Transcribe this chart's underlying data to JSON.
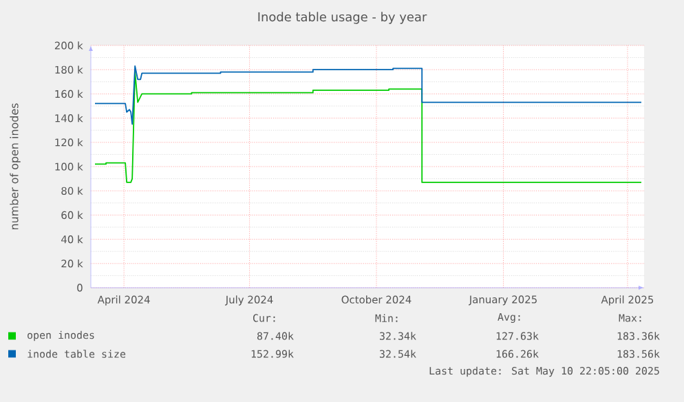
{
  "chart_data": {
    "type": "line",
    "title": "Inode table usage - by year",
    "ylabel": "number of open inodes",
    "xlim": [
      "2024-03-08",
      "2025-04-13"
    ],
    "xticks": [
      {
        "value": "2024-04-01",
        "label": "April 2024"
      },
      {
        "value": "2024-07-01",
        "label": "July 2024"
      },
      {
        "value": "2024-10-01",
        "label": "October 2024"
      },
      {
        "value": "2025-01-01",
        "label": "January 2025"
      },
      {
        "value": "2025-04-01",
        "label": "April 2025"
      }
    ],
    "ylim": [
      0,
      200000
    ],
    "yticks": [
      0,
      {
        "value": 20000,
        "label": "20 k"
      },
      {
        "value": 40000,
        "label": "40 k"
      },
      {
        "value": 60000,
        "label": "60 k"
      },
      {
        "value": 80000,
        "label": "80 k"
      },
      {
        "value": 100000,
        "label": "100 k"
      },
      {
        "value": 120000,
        "label": "120 k"
      },
      {
        "value": 140000,
        "label": "140 k"
      },
      {
        "value": 160000,
        "label": "160 k"
      },
      {
        "value": 180000,
        "label": "180 k"
      },
      {
        "value": 200000,
        "label": "200 k"
      }
    ],
    "grid": true,
    "legend": "bottom",
    "marker": "none",
    "line_style": "solid",
    "series": [
      {
        "name": "open inodes",
        "color": "#00cc00",
        "x": [
          "2024-03-11",
          "2024-03-19",
          "2024-03-19",
          "2024-04-02",
          "2024-04-03",
          "2024-04-06",
          "2024-04-07",
          "2024-04-09",
          "2024-04-11",
          "2024-04-14",
          "2024-05-20",
          "2024-05-20",
          "2024-08-16",
          "2024-08-16",
          "2024-10-10",
          "2024-10-10",
          "2024-11-03",
          "2024-11-03",
          "2025-04-11"
        ],
        "values": [
          102000,
          102000,
          103000,
          103000,
          87000,
          87000,
          90000,
          178000,
          153000,
          160000,
          160000,
          161000,
          161000,
          163000,
          163000,
          164000,
          164000,
          87000,
          87000
        ]
      },
      {
        "name": "inode table size",
        "color": "#0066b3",
        "x": [
          "2024-03-11",
          "2024-04-02",
          "2024-04-03",
          "2024-04-05",
          "2024-04-06",
          "2024-04-07",
          "2024-04-09",
          "2024-04-11",
          "2024-04-13",
          "2024-04-14",
          "2024-06-10",
          "2024-06-10",
          "2024-08-16",
          "2024-08-16",
          "2024-10-13",
          "2024-10-13",
          "2024-11-03",
          "2024-11-03",
          "2025-04-11"
        ],
        "values": [
          152000,
          152000,
          145000,
          147000,
          145000,
          135000,
          183000,
          172000,
          172000,
          177000,
          177000,
          178000,
          178000,
          180000,
          180000,
          181000,
          181000,
          153000,
          153000
        ]
      }
    ],
    "annotations": [
      "Cur:",
      "Min:",
      "Avg:",
      "Max:",
      "87.40k",
      "32.34k",
      "127.63k",
      "183.36k",
      "152.99k",
      "32.54k",
      "166.26k",
      "183.56k",
      "Last update:  Sat May 10 22:05:00 2025"
    ]
  }
}
